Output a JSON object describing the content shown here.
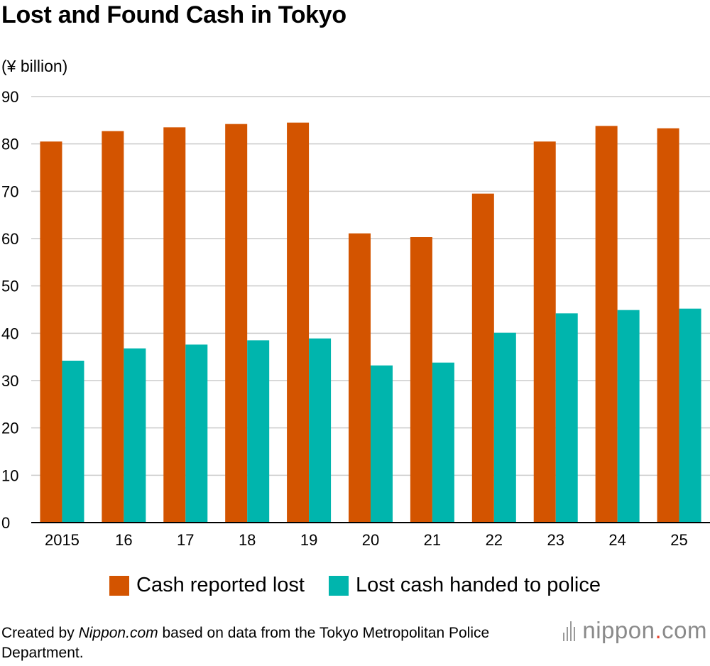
{
  "title": "Lost and Found Cash in Tokyo",
  "unit_label": "(¥ billion)",
  "chart_data": {
    "type": "bar",
    "title": "Lost and Found Cash in Tokyo",
    "ylabel": "(¥ billion)",
    "xlabel": "",
    "ylim": [
      0,
      90
    ],
    "yticks": [
      0,
      10,
      20,
      30,
      40,
      50,
      60,
      70,
      80,
      90
    ],
    "grid": true,
    "legend_position": "bottom",
    "categories": [
      "2015",
      "16",
      "17",
      "18",
      "19",
      "20",
      "21",
      "22",
      "23",
      "24",
      "25"
    ],
    "series": [
      {
        "name": "Cash reported lost",
        "color": "#d35400",
        "values": [
          80.5,
          82.7,
          83.5,
          84.2,
          84.5,
          61.1,
          60.3,
          69.5,
          80.5,
          83.8,
          83.3
        ]
      },
      {
        "name": "Lost cash handed to police",
        "color": "#00b5ad",
        "values": [
          34.2,
          36.8,
          37.6,
          38.5,
          38.9,
          33.2,
          33.8,
          40.1,
          44.2,
          44.9,
          45.2
        ]
      }
    ]
  },
  "source": {
    "prefix": "Created by ",
    "site": "Nippon.com",
    "suffix": " based on data from the Tokyo Metropolitan Police Department."
  },
  "logo": {
    "name": "nippon",
    "dot": ".",
    "tld": "com"
  }
}
